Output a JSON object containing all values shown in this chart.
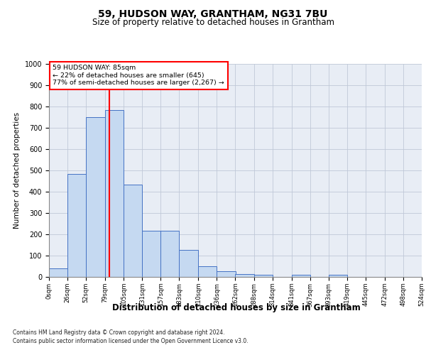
{
  "title": "59, HUDSON WAY, GRANTHAM, NG31 7BU",
  "subtitle": "Size of property relative to detached houses in Grantham",
  "xlabel": "Distribution of detached houses by size in Grantham",
  "ylabel": "Number of detached properties",
  "footnote1": "Contains HM Land Registry data © Crown copyright and database right 2024.",
  "footnote2": "Contains public sector information licensed under the Open Government Licence v3.0.",
  "bar_values": [
    40,
    485,
    750,
    785,
    435,
    217,
    217,
    127,
    50,
    27,
    15,
    10,
    0,
    10,
    0,
    10,
    0,
    0,
    0,
    0
  ],
  "bin_edges": [
    0,
    26,
    52,
    79,
    105,
    131,
    157,
    183,
    210,
    236,
    262,
    288,
    314,
    341,
    367,
    393,
    419,
    445,
    472,
    498,
    524
  ],
  "tick_labels": [
    "0sqm",
    "26sqm",
    "52sqm",
    "79sqm",
    "105sqm",
    "131sqm",
    "157sqm",
    "183sqm",
    "210sqm",
    "236sqm",
    "262sqm",
    "288sqm",
    "314sqm",
    "341sqm",
    "367sqm",
    "393sqm",
    "419sqm",
    "445sqm",
    "472sqm",
    "498sqm",
    "524sqm"
  ],
  "bar_color": "#c5d9f1",
  "bar_edge_color": "#4472c4",
  "property_line_x": 85,
  "property_line_color": "red",
  "annotation_line1": "59 HUDSON WAY: 85sqm",
  "annotation_line2": "← 22% of detached houses are smaller (645)",
  "annotation_line3": "77% of semi-detached houses are larger (2,267) →",
  "ylim": [
    0,
    1000
  ],
  "yticks": [
    0,
    100,
    200,
    300,
    400,
    500,
    600,
    700,
    800,
    900,
    1000
  ],
  "grid_color": "#c0c8d8",
  "bg_color": "#e8edf5",
  "title_fontsize": 10,
  "subtitle_fontsize": 8.5,
  "ylabel_fontsize": 7.5,
  "xlabel_fontsize": 8.5,
  "tick_fontsize": 6,
  "ytick_fontsize": 7,
  "footnote_fontsize": 5.5
}
